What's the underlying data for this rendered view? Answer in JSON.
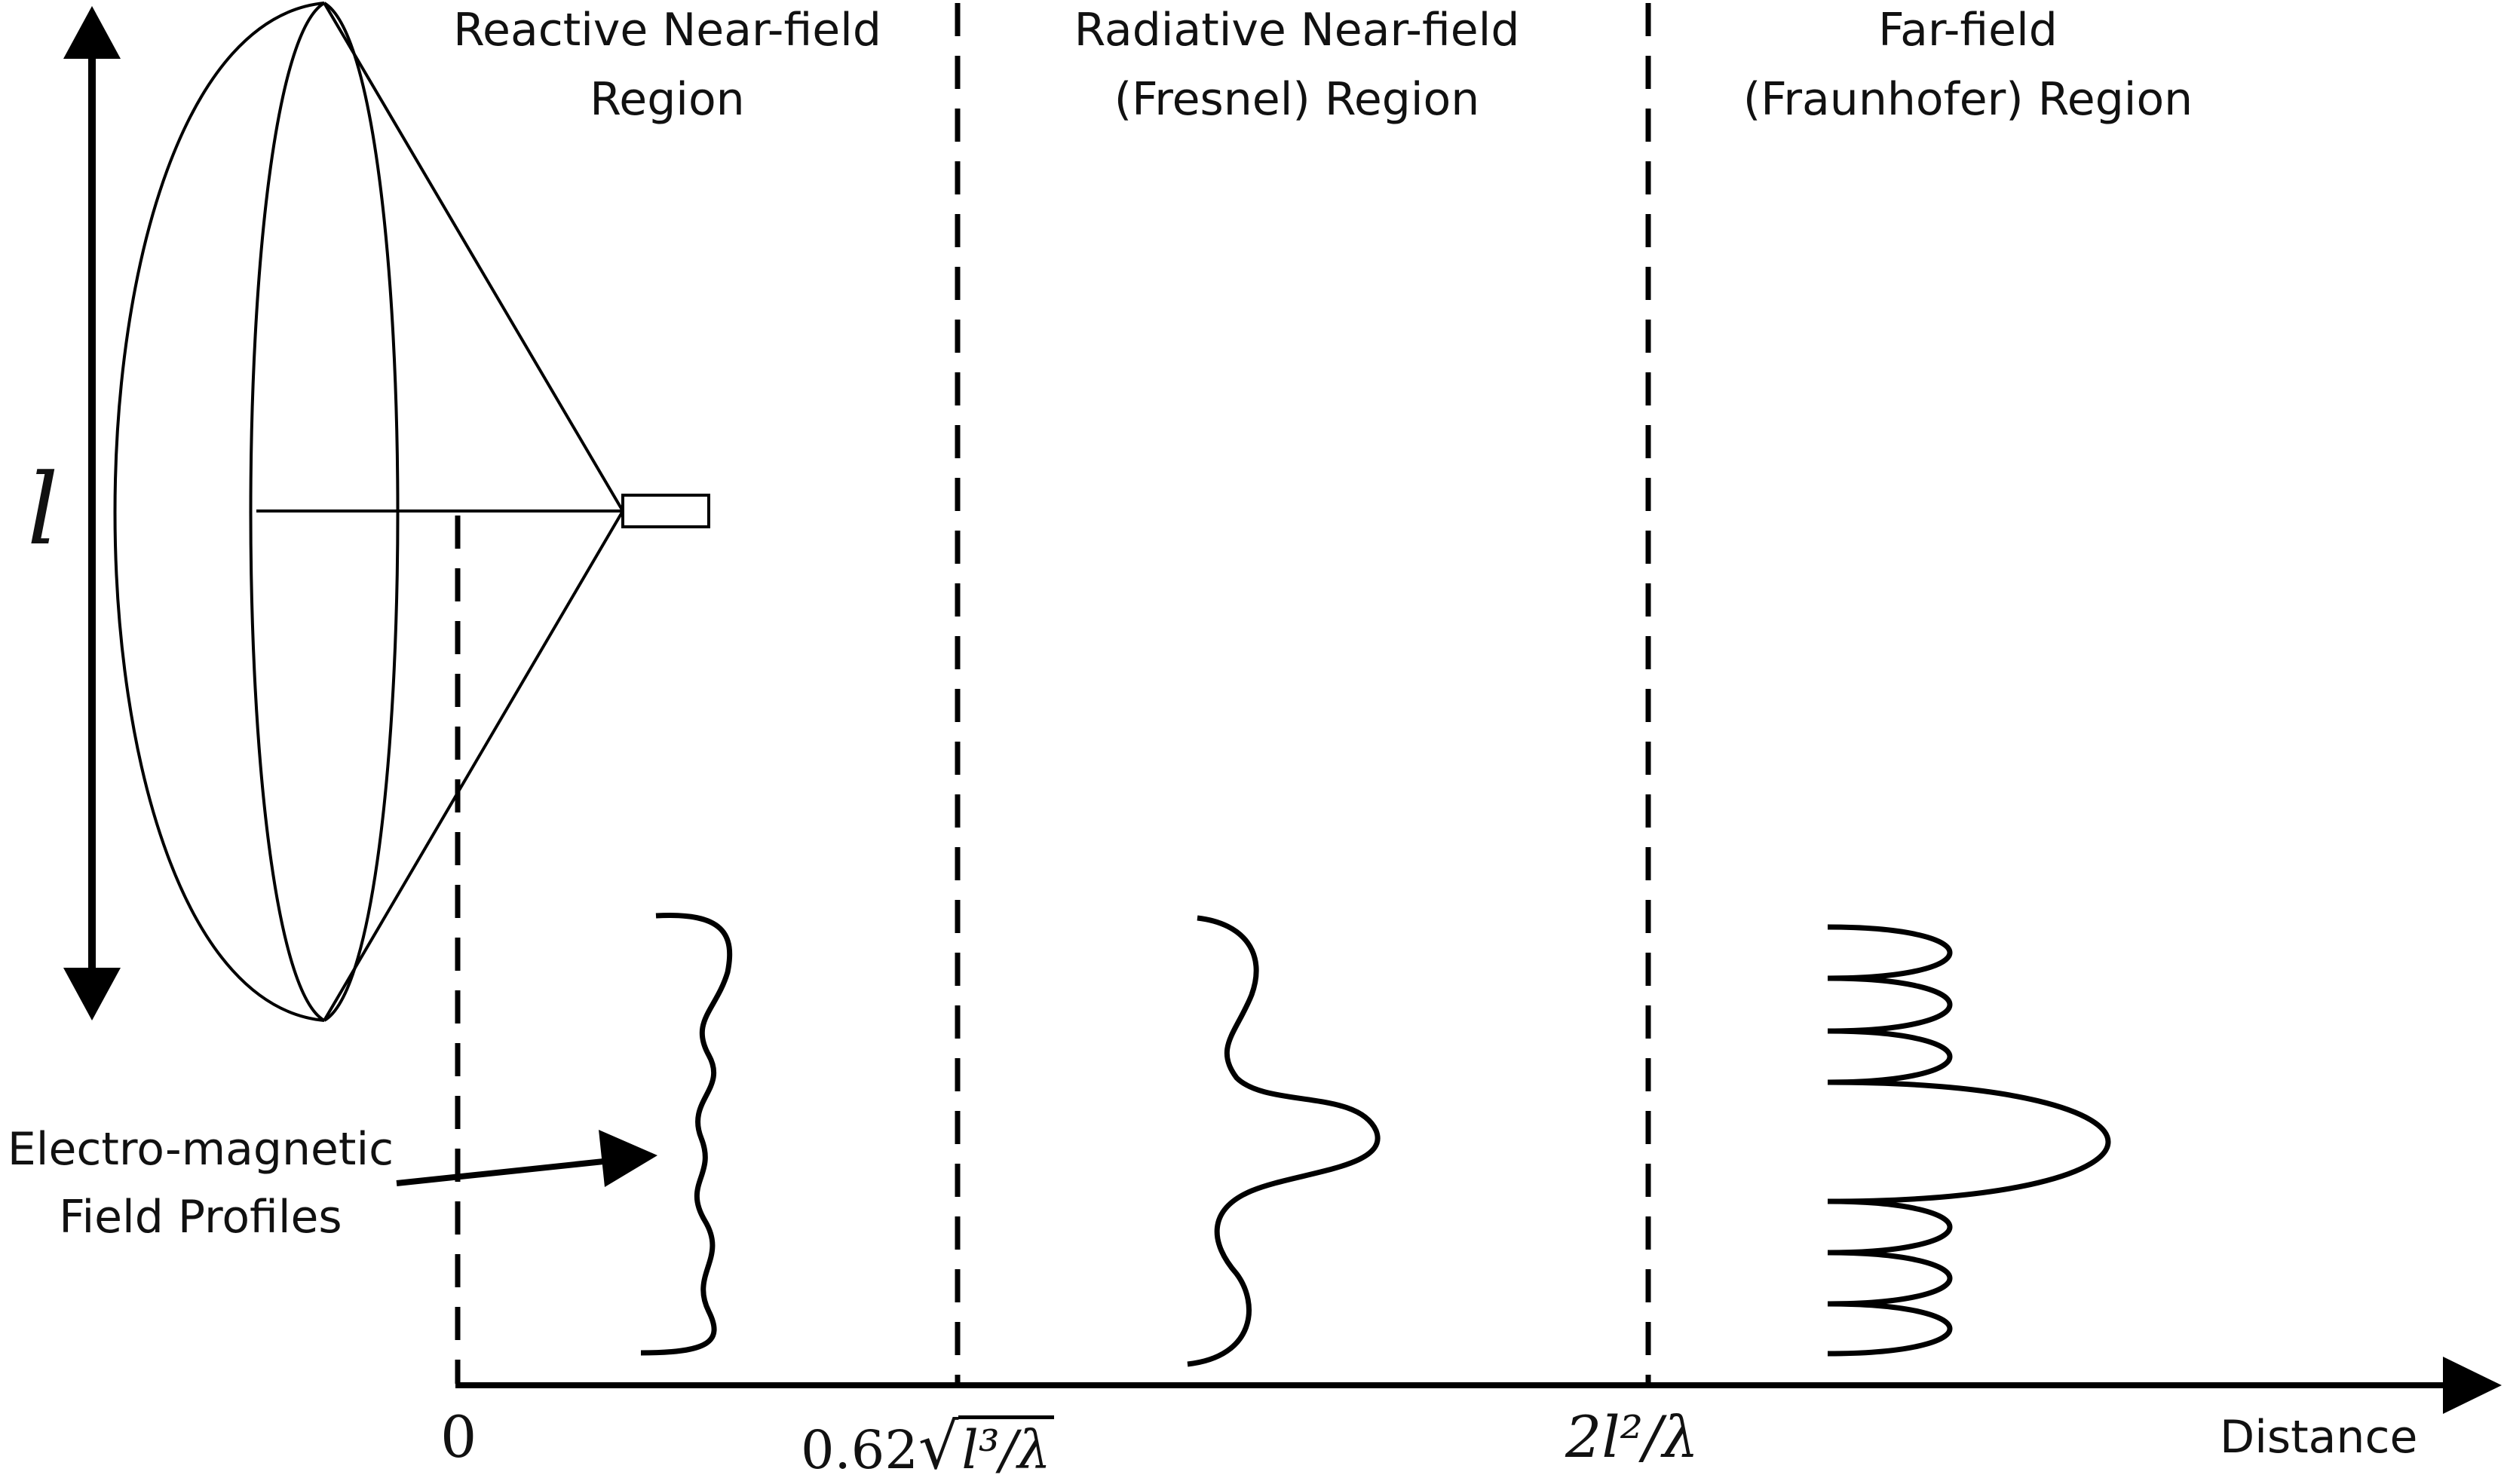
{
  "regions": [
    {
      "line1": "Reactive Near-field",
      "line2": "Region"
    },
    {
      "line1": "Radiative Near-field",
      "line2": "(Fresnel) Region"
    },
    {
      "line1": "Far-field",
      "line2": "(Fraunhofer) Region"
    }
  ],
  "ticks": {
    "origin": "0",
    "fresnel_coef": "0.62",
    "fresnel_expr": "l³/λ",
    "fraunhofer": "2l²/λ"
  },
  "axis_label": "Distance",
  "aperture_symbol": "l",
  "pointer_label": {
    "line1": "Electro-magnetic",
    "line2": "Field Profiles"
  }
}
